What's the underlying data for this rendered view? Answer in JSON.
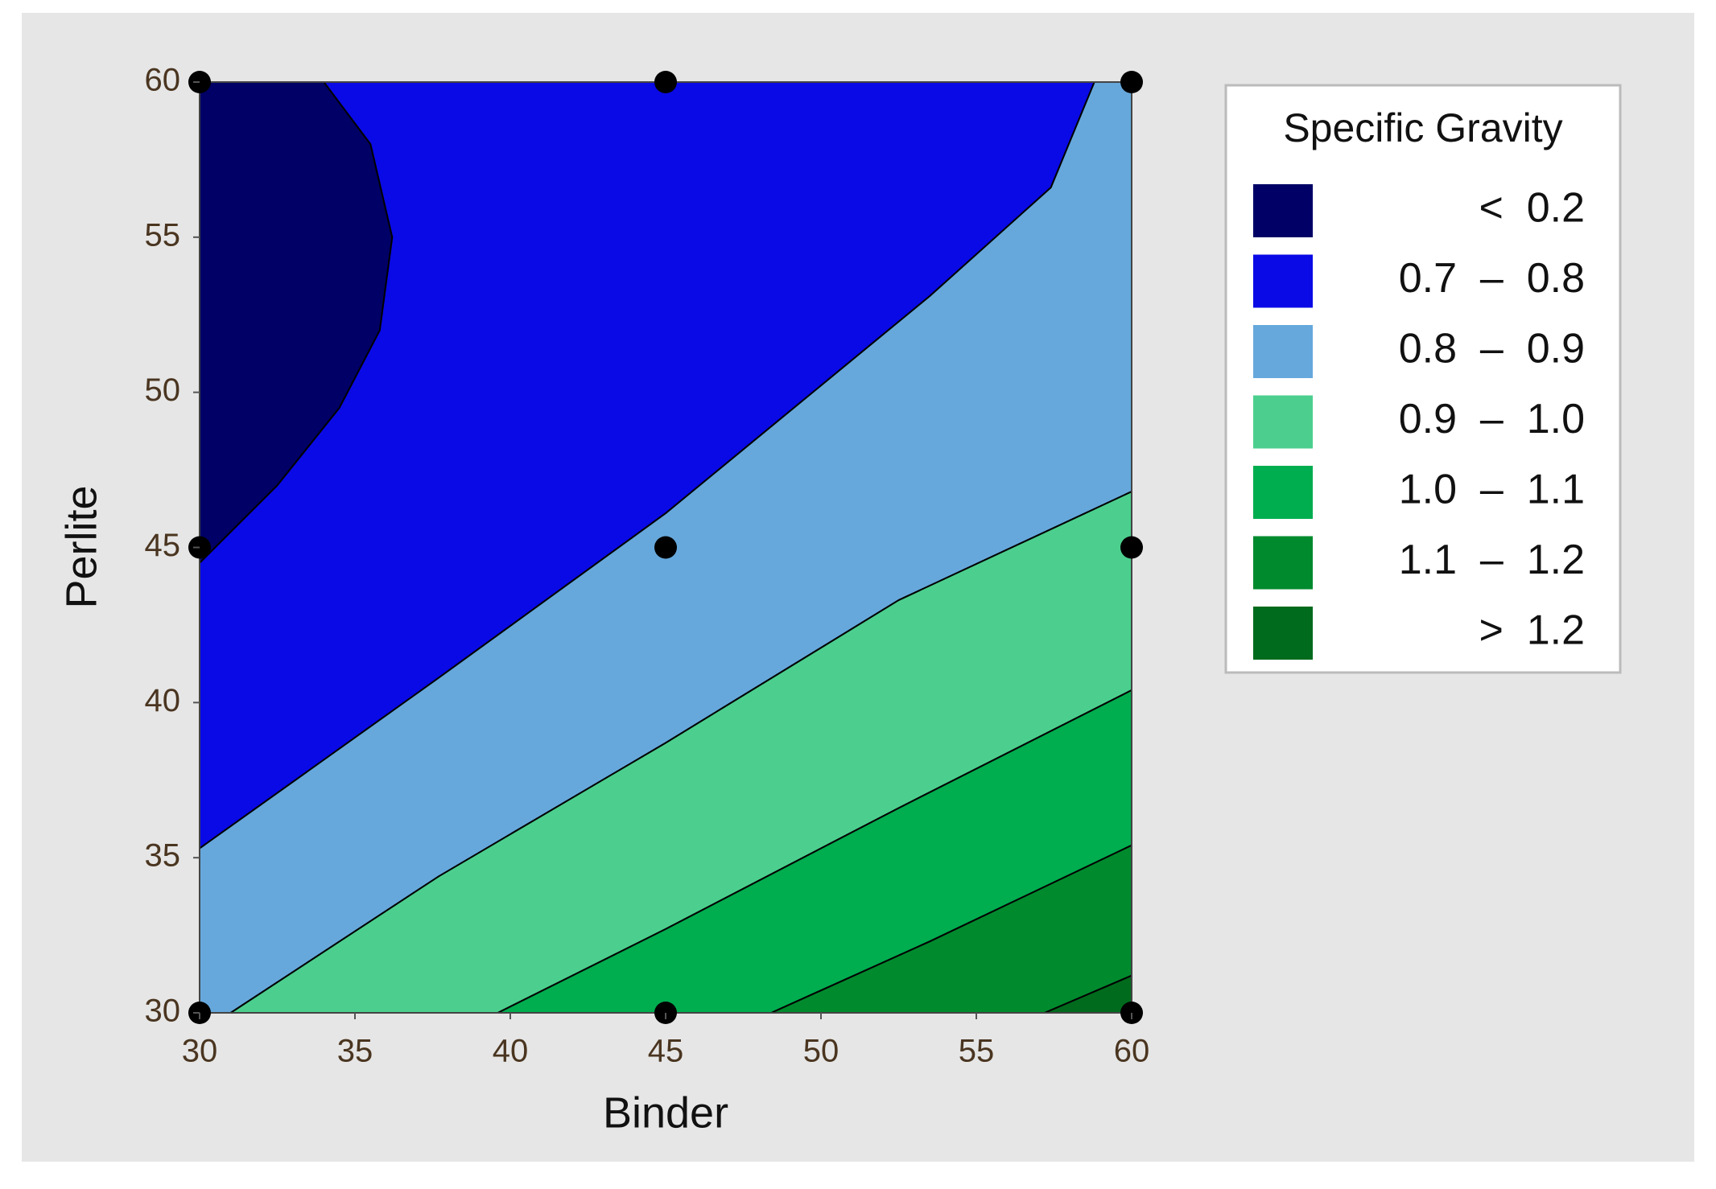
{
  "chart_data": {
    "type": "contour",
    "x_label": "Binder",
    "y_label": "Perlite",
    "xlim": [
      30,
      60
    ],
    "ylim": [
      30,
      60
    ],
    "xticks": [
      30,
      35,
      40,
      45,
      50,
      55,
      60
    ],
    "yticks": [
      30,
      35,
      40,
      45,
      50,
      55,
      60
    ],
    "legend_title": "Specific Gravity",
    "levels": [
      {
        "label": "<  0.2",
        "color": "#000066"
      },
      {
        "label": "0.7  –  0.8",
        "color": "#0a0ae6"
      },
      {
        "label": "0.8  –  0.9",
        "color": "#66a8dc"
      },
      {
        "label": "0.9  –  1.0",
        "color": "#4ccf8e"
      },
      {
        "label": "1.0  –  1.1",
        "color": "#00ad4f"
      },
      {
        "label": "1.1  –  1.2",
        "color": "#008a2e"
      },
      {
        "label": ">  1.2",
        "color": "#006b1d"
      }
    ],
    "regions": [
      {
        "level": 0,
        "x": [
          30,
          34,
          35.5,
          36.2,
          35.8,
          34.5,
          32.5,
          30
        ],
        "y": [
          60,
          60,
          58,
          55,
          52,
          49.5,
          47,
          44.5
        ]
      },
      {
        "level": 1,
        "x": [
          30,
          32.5,
          34.5,
          35.8,
          36.2,
          35.5,
          34,
          58.8,
          57.4,
          53.5,
          45,
          37.7,
          30
        ],
        "y": [
          44.5,
          47,
          49.5,
          52,
          55,
          58,
          60,
          60,
          56.6,
          53.1,
          46.1,
          40.8,
          35.3
        ]
      },
      {
        "level": 2,
        "x": [
          30,
          30,
          37.7,
          45,
          53.5,
          57.4,
          58.8,
          60,
          60,
          52.5,
          45,
          37.7,
          31
        ],
        "y": [
          30,
          35.3,
          40.8,
          46.1,
          53.1,
          56.6,
          60,
          60,
          46.8,
          43.3,
          38.7,
          34.4,
          30
        ]
      },
      {
        "level": 3,
        "x": [
          31,
          37.7,
          45,
          52.5,
          60,
          60,
          52.5,
          45,
          39.6
        ],
        "y": [
          30,
          34.4,
          38.7,
          43.3,
          46.8,
          40.4,
          36.6,
          32.7,
          30
        ]
      },
      {
        "level": 4,
        "x": [
          39.6,
          45,
          52.5,
          60,
          60,
          53.5,
          48.4
        ],
        "y": [
          30,
          32.7,
          36.6,
          40.4,
          35.4,
          32.3,
          30
        ]
      },
      {
        "level": 5,
        "x": [
          48.4,
          53.5,
          60,
          60,
          57.2
        ],
        "y": [
          30,
          32.3,
          35.4,
          31.2,
          30
        ]
      },
      {
        "level": 6,
        "x": [
          57.2,
          60,
          60
        ],
        "y": [
          30,
          31.2,
          30
        ]
      }
    ],
    "points": {
      "x": [
        30,
        45,
        60,
        30,
        45,
        60,
        30,
        45,
        60
      ],
      "y": [
        60,
        60,
        60,
        45,
        45,
        45,
        30,
        30,
        30
      ]
    }
  }
}
